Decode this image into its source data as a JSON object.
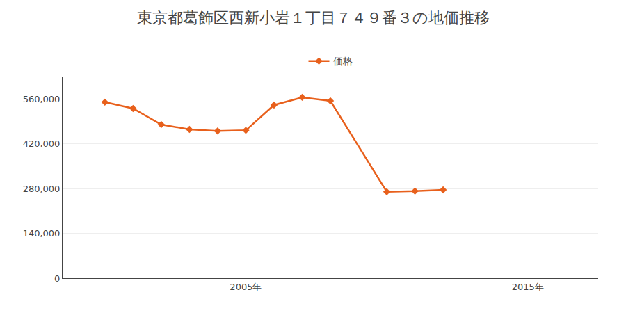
{
  "chart_data": {
    "type": "line",
    "title": "東京都葛飾区西新小岩１丁目７４９番３の地価推移",
    "x": [
      2000,
      2001,
      2002,
      2003,
      2004,
      2005,
      2006,
      2007,
      2008,
      2010,
      2011,
      2012
    ],
    "series": [
      {
        "name": "価格",
        "color": "#e8601c",
        "marker": "diamond",
        "values": [
          550000,
          530000,
          480000,
          465000,
          460000,
          462000,
          541000,
          565000,
          554000,
          270000,
          272000,
          276000
        ]
      }
    ],
    "xlim": [
      1998.5,
      2017.5
    ],
    "xticks": [
      {
        "value": 2005,
        "label": "2005年"
      },
      {
        "value": 2015,
        "label": "2015年"
      }
    ],
    "ylim": [
      0,
      630000
    ],
    "yticks": [
      0,
      {
        "value": 140000,
        "label": "140,000"
      },
      {
        "value": 280000,
        "label": "280,000"
      },
      {
        "value": 420000,
        "label": "420,000"
      },
      {
        "value": 560000,
        "label": "560,000"
      }
    ],
    "grid": "y",
    "legend": "top"
  }
}
